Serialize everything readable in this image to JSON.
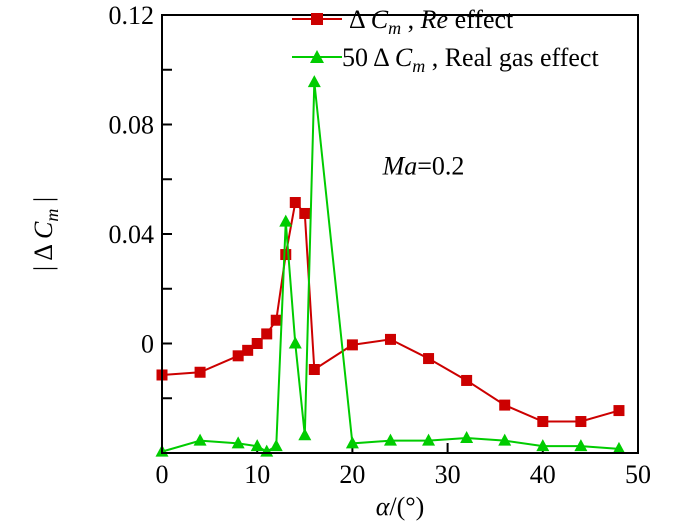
{
  "chart_data": {
    "type": "line",
    "x_axis": {
      "label_symbol": "α",
      "label_unit": "/(°)",
      "range": [
        0,
        50
      ],
      "ticks": [
        0,
        10,
        20,
        30,
        40,
        50
      ],
      "tick_labels": [
        "0",
        "10",
        "20",
        "30",
        "40",
        "50"
      ]
    },
    "y_axis": {
      "label_prefix": "| Δ ",
      "label_var": "C",
      "label_sub": "m",
      "label_suffix": " |",
      "range": [
        -0.04,
        0.12
      ],
      "ticks": [
        -0.04,
        -0.02,
        0.0,
        0.02,
        0.04,
        0.06,
        0.08,
        0.1,
        0.12
      ],
      "labeled_ticks": [
        0.0,
        0.04,
        0.08,
        0.12
      ],
      "tick_labels": [
        "0",
        "0.04",
        "0.08",
        "0.12"
      ]
    },
    "annotation": {
      "var": "Ma",
      "value": "=0.2",
      "x": 30,
      "y": 0.065
    },
    "series": [
      {
        "name": "ΔCm, Re effect",
        "legend_parts": {
          "delta": "Δ ",
          "var": "C",
          "sub": "m",
          "sep": " , ",
          "italic": "Re",
          "rest": " effect"
        },
        "color": "#cc0000",
        "marker": "square",
        "x": [
          0,
          4,
          8,
          9,
          10,
          11,
          12,
          13,
          14,
          15,
          16,
          20,
          24,
          28,
          32,
          36,
          40,
          44,
          48
        ],
        "values": [
          -0.0115,
          -0.0105,
          -0.0045,
          -0.0025,
          0.0,
          0.0035,
          0.0085,
          0.0325,
          0.0515,
          0.0475,
          -0.0095,
          -0.0005,
          0.0015,
          -0.0055,
          -0.0135,
          -0.0225,
          -0.0285,
          -0.0285,
          -0.0245
        ]
      },
      {
        "name": "50ΔCm, Real gas effect",
        "legend_parts": {
          "delta": "50 Δ ",
          "var": "C",
          "sub": "m",
          "sep": " , ",
          "italic": "",
          "rest": "Real gas effect"
        },
        "color": "#00cc00",
        "marker": "triangle",
        "x": [
          0,
          4,
          8,
          10,
          11,
          12,
          13,
          14,
          15,
          16,
          20,
          24,
          28,
          32,
          36,
          40,
          44,
          48
        ],
        "values": [
          -0.0395,
          -0.0355,
          -0.0365,
          -0.0375,
          -0.0395,
          -0.0375,
          0.0445,
          0.0,
          -0.0335,
          0.0955,
          -0.0365,
          -0.0355,
          -0.0355,
          -0.0345,
          -0.0355,
          -0.0375,
          -0.0375,
          -0.0385
        ]
      }
    ]
  }
}
